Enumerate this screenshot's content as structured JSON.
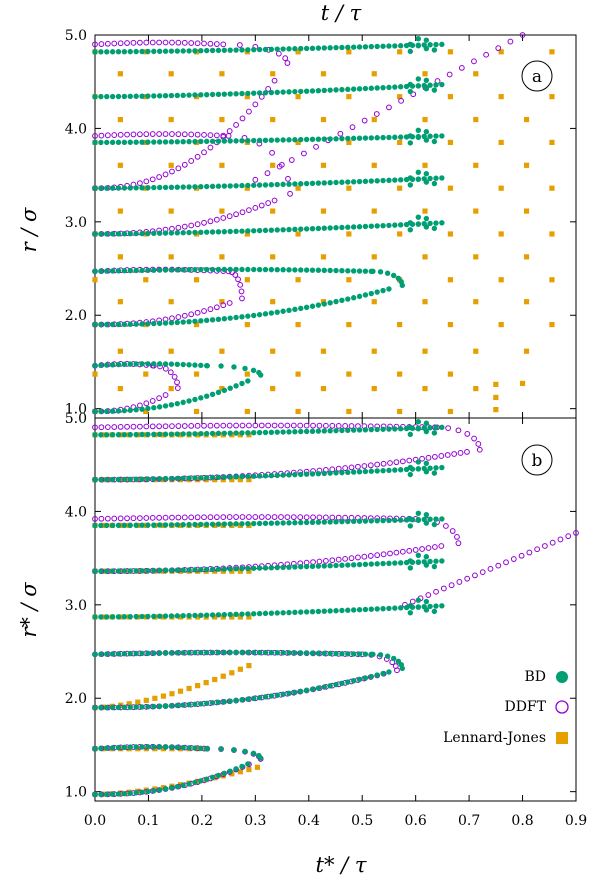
{
  "colors": {
    "bd": "#009e73",
    "ddft": "#9400d3",
    "lj": "#e69f00",
    "frame": "#000000"
  },
  "figure": {
    "top_title": "t / τ",
    "bottom_xlabel": "t* / τ",
    "panel_a": {
      "label": "a",
      "ylabel": "r / σ"
    },
    "panel_b": {
      "label": "b",
      "ylabel": "r* / σ"
    }
  },
  "chart_data": [
    {
      "panel": "a",
      "type": "scatter",
      "x_axis_title": "t / τ",
      "ylabel": "r / σ",
      "xlim": [
        0,
        0.9
      ],
      "ylim": [
        0.9,
        5.0
      ],
      "x_ticks": [
        "0.0",
        "0.1",
        "0.2",
        "0.3",
        "0.4",
        "0.5",
        "0.6",
        "0.7",
        "0.8",
        "0.9"
      ],
      "y_ticks": [
        {
          "value": 1.0,
          "label": "1.0"
        },
        {
          "value": 2.0,
          "label": "2.0"
        },
        {
          "value": 3.0,
          "label": "3.0"
        },
        {
          "value": 4.0,
          "label": "4.0"
        },
        {
          "value": 5.0,
          "label": "5.0"
        }
      ],
      "shells_start_r": [
        0.97,
        1.37,
        1.9,
        2.38,
        2.87,
        3.36,
        3.85,
        4.34,
        4.82
      ],
      "bd": {
        "loops": [
          {
            "r_lo": 0.97,
            "r_hi": 1.46,
            "t_tip": 0.31,
            "r_tip": 1.36,
            "t_top_end": 0.21
          },
          {
            "r_lo": 1.9,
            "r_hi": 2.47,
            "t_tip": 0.575,
            "r_tip": 2.32,
            "t_top_end": 0.52
          }
        ],
        "outer_shells": [
          {
            "r0": 2.87,
            "r_end": 2.99,
            "t_end": 0.65
          },
          {
            "r0": 3.36,
            "r_end": 3.47,
            "t_end": 0.65
          },
          {
            "r0": 3.85,
            "r_end": 3.92,
            "t_end": 0.65
          },
          {
            "r0": 4.34,
            "r_end": 4.47,
            "t_end": 0.65
          },
          {
            "r0": 4.82,
            "r_end": 4.9,
            "t_end": 0.65
          }
        ]
      },
      "ddft": {
        "loops": [
          {
            "r_lo": 0.97,
            "r_hi": 1.46,
            "t_tip": 0.155,
            "r_tip": 1.22,
            "t_top_end": 0.11
          },
          {
            "r_lo": 1.9,
            "r_hi": 2.47,
            "t_tip": 0.275,
            "r_tip": 2.18,
            "t_top_end": 0.25
          },
          {
            "r_lo": 2.87,
            "r_hi": 3.92,
            "t_tip": 0.365,
            "r_tip": 3.3,
            "t_top_end": 0.25
          },
          {
            "r_lo": 3.36,
            "r_hi": 4.9,
            "t_tip": 0.36,
            "r_tip": 4.7,
            "t_top_end": 0.24
          }
        ],
        "branch": {
          "t_start": 0.3,
          "r_start": 3.45,
          "t_end": 0.8,
          "r_end": 5.0
        }
      },
      "lennard_jones": {
        "shell_r": [
          0.97,
          1.37,
          1.9,
          2.38,
          2.87,
          3.36,
          3.85,
          4.34,
          4.82
        ],
        "lattice_r_step": 0.49,
        "lattice_t_step": 0.0475,
        "lattice_t_max": 0.9,
        "tail": [
          {
            "t": 0.75,
            "r": 1.26
          },
          {
            "t": 0.8,
            "r": 1.27
          },
          {
            "t": 0.75,
            "r": 1.12
          },
          {
            "t": 0.75,
            "r": 0.99
          }
        ]
      }
    },
    {
      "panel": "b",
      "type": "scatter",
      "xlabel": "t* / τ",
      "ylabel": "r* / σ",
      "xlim": [
        0,
        0.9
      ],
      "ylim": [
        0.9,
        5.0
      ],
      "x_ticks": [
        "0.0",
        "0.1",
        "0.2",
        "0.3",
        "0.4",
        "0.5",
        "0.6",
        "0.7",
        "0.8",
        "0.9"
      ],
      "y_ticks": [
        {
          "value": 1.0,
          "label": "1.0"
        },
        {
          "value": 2.0,
          "label": "2.0"
        },
        {
          "value": 3.0,
          "label": "3.0"
        },
        {
          "value": 4.0,
          "label": "4.0"
        },
        {
          "value": 5.0,
          "label": "5.0"
        }
      ],
      "legend": [
        {
          "label": "BD",
          "marker": "filled-circle",
          "color": "#009e73"
        },
        {
          "label": "DDFT",
          "marker": "open-circle",
          "color": "#9400d3"
        },
        {
          "label": "Lennard-Jones",
          "marker": "square",
          "color": "#e69f00"
        }
      ],
      "legend_position": "bottom-right",
      "bd": {
        "loops": [
          {
            "r_lo": 0.97,
            "r_hi": 1.46,
            "t_tip": 0.31,
            "r_tip": 1.36,
            "t_top_end": 0.21
          },
          {
            "r_lo": 1.9,
            "r_hi": 2.47,
            "t_tip": 0.575,
            "r_tip": 2.32,
            "t_top_end": 0.52
          }
        ],
        "outer_shells": [
          {
            "r0": 2.87,
            "r_end": 2.99,
            "t_end": 0.65
          },
          {
            "r0": 3.36,
            "r_end": 3.47,
            "t_end": 0.65
          },
          {
            "r0": 3.85,
            "r_end": 3.92,
            "t_end": 0.65
          },
          {
            "r0": 4.34,
            "r_end": 4.47,
            "t_end": 0.65
          },
          {
            "r0": 4.82,
            "r_end": 4.9,
            "t_end": 0.65
          }
        ]
      },
      "ddft": {
        "loops": [
          {
            "r_lo": 0.97,
            "r_hi": 1.46,
            "t_tip": 0.31,
            "r_tip": 1.35,
            "t_top_end": 0.21
          },
          {
            "r_lo": 1.9,
            "r_hi": 2.47,
            "t_tip": 0.565,
            "r_tip": 2.3,
            "t_top_end": 0.5
          },
          {
            "r_lo": 3.36,
            "r_hi": 3.92,
            "t_tip": 0.68,
            "r_tip": 3.66,
            "t_top_end": 0.6
          },
          {
            "r_lo": 4.34,
            "r_hi": 4.9,
            "t_tip": 0.72,
            "r_tip": 4.66,
            "t_top_end": 0.64
          }
        ],
        "branch": {
          "t_start": 0.58,
          "r_start": 3.0,
          "t_end": 0.9,
          "r_end": 3.77
        }
      },
      "lennard_jones": {
        "shells": [
          {
            "r0": 0.97,
            "r_end": 1.27,
            "t_end": 0.31,
            "loop_top": 1.46,
            "t_top_end": 0.22
          },
          {
            "r0": 1.9,
            "r_end": 2.38,
            "t_end": 0.3,
            "loop_top": 2.38,
            "t_top_end": 0.31
          },
          {
            "r0": 2.87,
            "r_end": 2.87,
            "t_end": 0.3
          },
          {
            "r0": 3.36,
            "r_end": 3.36,
            "t_end": 0.3
          },
          {
            "r0": 3.85,
            "r_end": 3.85,
            "t_end": 0.3
          },
          {
            "r0": 4.34,
            "r_end": 4.34,
            "t_end": 0.3
          },
          {
            "r0": 4.82,
            "r_end": 4.82,
            "t_end": 0.3
          }
        ]
      }
    }
  ]
}
